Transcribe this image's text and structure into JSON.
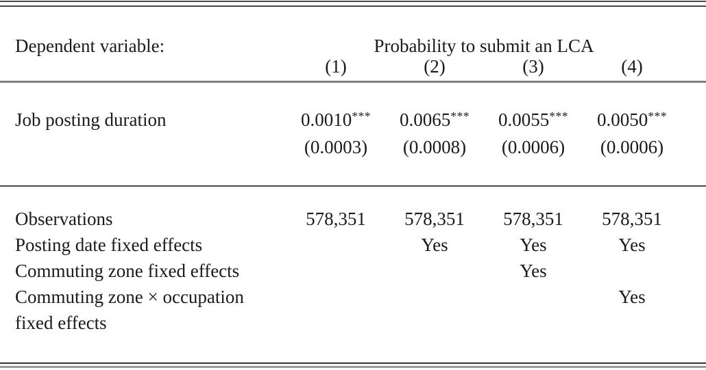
{
  "table": {
    "header": {
      "dependent_variable_label": "Dependent variable:",
      "dependent_variable_value": "Probability to submit an LCA",
      "column_numbers": [
        "(1)",
        "(2)",
        "(3)",
        "(4)"
      ]
    },
    "coefficient_row": {
      "label": "Job posting duration",
      "estimates": [
        {
          "value": "0.0010",
          "stars": "***",
          "se": "(0.0003)"
        },
        {
          "value": "0.0065",
          "stars": "***",
          "se": "(0.0008)"
        },
        {
          "value": "0.0055",
          "stars": "***",
          "se": "(0.0006)"
        },
        {
          "value": "0.0050",
          "stars": "***",
          "se": "(0.0006)"
        }
      ]
    },
    "summary_rows": [
      {
        "label": "Observations",
        "values": [
          "578,351",
          "578,351",
          "578,351",
          "578,351"
        ]
      },
      {
        "label": "Posting date fixed effects",
        "values": [
          "",
          "Yes",
          "Yes",
          "Yes"
        ]
      },
      {
        "label": "Commuting zone fixed effects",
        "values": [
          "",
          "",
          "Yes",
          ""
        ]
      },
      {
        "label": "Commuting zone × occupation fixed effects",
        "values": [
          "",
          "",
          "",
          "Yes"
        ]
      }
    ]
  }
}
